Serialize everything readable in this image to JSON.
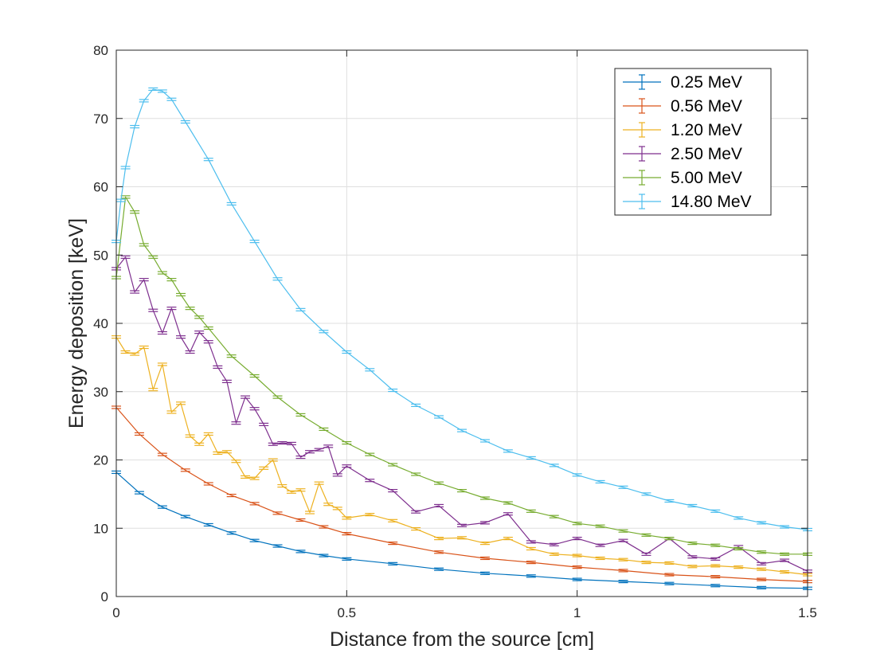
{
  "chart_data": {
    "type": "line",
    "title": "",
    "xlabel": "Distance from the source [cm]",
    "ylabel": "Energy deposition [keV]",
    "xlim": [
      0,
      1.5
    ],
    "ylim": [
      0,
      80
    ],
    "xticks": [
      0,
      0.5,
      1,
      1.5
    ],
    "xtick_labels": [
      "0",
      "0.5",
      "1",
      "1.5"
    ],
    "yticks": [
      0,
      10,
      20,
      30,
      40,
      50,
      60,
      70,
      80
    ],
    "ytick_labels": [
      "0",
      "10",
      "20",
      "30",
      "40",
      "50",
      "60",
      "70",
      "80"
    ],
    "grid": true,
    "legend_position": "top-right",
    "error_bars": true,
    "series": [
      {
        "name": "0.25 MeV",
        "color": "#0072BD",
        "x": [
          0,
          0.05,
          0.1,
          0.15,
          0.2,
          0.25,
          0.3,
          0.35,
          0.4,
          0.45,
          0.5,
          0.6,
          0.7,
          0.8,
          0.9,
          1.0,
          1.1,
          1.2,
          1.3,
          1.4,
          1.5
        ],
        "y": [
          18.2,
          15.2,
          13.1,
          11.7,
          10.5,
          9.3,
          8.2,
          7.4,
          6.6,
          6.0,
          5.5,
          4.8,
          4.0,
          3.4,
          3.0,
          2.5,
          2.2,
          1.9,
          1.6,
          1.3,
          1.2
        ]
      },
      {
        "name": "0.56 MeV",
        "color": "#D95319",
        "x": [
          0,
          0.05,
          0.1,
          0.15,
          0.2,
          0.25,
          0.3,
          0.35,
          0.4,
          0.45,
          0.5,
          0.6,
          0.7,
          0.8,
          0.9,
          1.0,
          1.1,
          1.2,
          1.3,
          1.4,
          1.5
        ],
        "y": [
          27.7,
          23.8,
          20.8,
          18.5,
          16.5,
          14.8,
          13.6,
          12.2,
          11.2,
          10.2,
          9.2,
          7.8,
          6.5,
          5.6,
          5.0,
          4.3,
          3.8,
          3.2,
          2.9,
          2.5,
          2.2
        ]
      },
      {
        "name": "1.20 MeV",
        "color": "#EDB120",
        "x": [
          0,
          0.02,
          0.04,
          0.06,
          0.08,
          0.1,
          0.12,
          0.14,
          0.16,
          0.18,
          0.2,
          0.22,
          0.24,
          0.26,
          0.28,
          0.3,
          0.32,
          0.34,
          0.36,
          0.38,
          0.4,
          0.42,
          0.44,
          0.46,
          0.48,
          0.5,
          0.55,
          0.6,
          0.65,
          0.7,
          0.75,
          0.8,
          0.85,
          0.9,
          0.95,
          1.0,
          1.05,
          1.1,
          1.15,
          1.2,
          1.25,
          1.3,
          1.35,
          1.4,
          1.45,
          1.5
        ],
        "y": [
          38.0,
          35.8,
          35.5,
          36.5,
          30.3,
          34.0,
          27.0,
          28.3,
          23.5,
          22.3,
          23.8,
          21.0,
          21.2,
          19.8,
          17.5,
          17.3,
          18.8,
          20.0,
          16.2,
          15.3,
          15.6,
          12.3,
          16.6,
          13.5,
          12.9,
          11.5,
          12.0,
          11.1,
          9.9,
          8.5,
          8.6,
          7.8,
          8.5,
          7.0,
          6.2,
          6.0,
          5.6,
          5.4,
          5.0,
          4.9,
          4.4,
          4.5,
          4.3,
          4.0,
          3.6,
          3.2
        ]
      },
      {
        "name": "2.50 MeV",
        "color": "#7E2F8E",
        "x": [
          0,
          0.02,
          0.04,
          0.06,
          0.08,
          0.1,
          0.12,
          0.14,
          0.16,
          0.18,
          0.2,
          0.22,
          0.24,
          0.26,
          0.28,
          0.3,
          0.32,
          0.34,
          0.36,
          0.38,
          0.4,
          0.42,
          0.44,
          0.46,
          0.48,
          0.5,
          0.55,
          0.6,
          0.65,
          0.7,
          0.75,
          0.8,
          0.85,
          0.9,
          0.95,
          1.0,
          1.05,
          1.1,
          1.15,
          1.2,
          1.25,
          1.3,
          1.35,
          1.4,
          1.45,
          1.5
        ],
        "y": [
          48.0,
          49.7,
          44.6,
          46.4,
          41.9,
          38.6,
          42.2,
          38.0,
          35.8,
          38.7,
          37.3,
          33.6,
          31.5,
          25.4,
          29.2,
          27.5,
          25.2,
          22.3,
          22.5,
          22.4,
          20.4,
          21.2,
          21.5,
          22.0,
          17.8,
          19.1,
          17.0,
          15.5,
          12.4,
          13.3,
          10.4,
          10.8,
          12.1,
          8.0,
          7.6,
          8.5,
          7.5,
          8.2,
          6.2,
          8.5,
          5.8,
          5.5,
          7.3,
          4.8,
          5.3,
          3.7
        ]
      },
      {
        "name": "5.00 MeV",
        "color": "#77AC30",
        "x": [
          0,
          0.02,
          0.04,
          0.06,
          0.08,
          0.1,
          0.12,
          0.14,
          0.16,
          0.18,
          0.2,
          0.25,
          0.3,
          0.35,
          0.4,
          0.45,
          0.5,
          0.55,
          0.6,
          0.65,
          0.7,
          0.75,
          0.8,
          0.85,
          0.9,
          0.95,
          1.0,
          1.05,
          1.1,
          1.15,
          1.2,
          1.25,
          1.3,
          1.35,
          1.4,
          1.45,
          1.5
        ],
        "y": [
          46.7,
          58.5,
          56.3,
          51.5,
          49.7,
          47.4,
          46.4,
          44.2,
          42.2,
          40.9,
          39.3,
          35.2,
          32.3,
          29.2,
          26.6,
          24.5,
          22.5,
          20.8,
          19.3,
          17.9,
          16.6,
          15.5,
          14.4,
          13.7,
          12.5,
          11.7,
          10.7,
          10.3,
          9.6,
          9.0,
          8.5,
          7.8,
          7.5,
          7.0,
          6.5,
          6.2,
          6.2
        ]
      },
      {
        "name": "14.80 MeV",
        "color": "#4DBEEE",
        "x": [
          0,
          0.01,
          0.02,
          0.04,
          0.06,
          0.08,
          0.1,
          0.12,
          0.15,
          0.2,
          0.25,
          0.3,
          0.35,
          0.4,
          0.45,
          0.5,
          0.55,
          0.6,
          0.65,
          0.7,
          0.75,
          0.8,
          0.85,
          0.9,
          0.95,
          1.0,
          1.05,
          1.1,
          1.15,
          1.2,
          1.25,
          1.3,
          1.35,
          1.4,
          1.45,
          1.5
        ],
        "y": [
          52.0,
          58.0,
          62.8,
          68.8,
          72.6,
          74.3,
          74.0,
          72.8,
          69.5,
          64.0,
          57.5,
          52.0,
          46.5,
          42.0,
          38.8,
          35.8,
          33.2,
          30.2,
          28.0,
          26.3,
          24.3,
          22.8,
          21.3,
          20.3,
          19.2,
          17.8,
          16.8,
          16.0,
          15.0,
          14.0,
          13.3,
          12.5,
          11.5,
          10.8,
          10.2,
          9.8
        ]
      }
    ]
  }
}
